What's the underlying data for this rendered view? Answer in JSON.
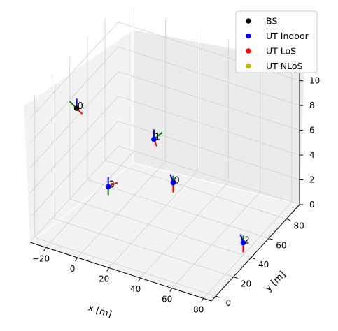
{
  "chart_data": {
    "type": "scatter",
    "projection": "3d",
    "xlabel": "x [m]",
    "ylabel": "y [m]",
    "zlabel": "",
    "xlim": [
      -30,
      85
    ],
    "ylim": [
      -5,
      95
    ],
    "zlim": [
      0,
      11.5
    ],
    "x_ticks": [
      "−20",
      "0",
      "20",
      "40",
      "60",
      "80"
    ],
    "y_ticks": [
      "0",
      "20",
      "40",
      "60",
      "80"
    ],
    "z_ticks": [
      "0",
      "2",
      "4",
      "6",
      "8",
      "10"
    ],
    "x_tick_values": [
      -20,
      0,
      20,
      40,
      60,
      80
    ],
    "y_tick_values": [
      0,
      20,
      40,
      60,
      80
    ],
    "z_tick_values": [
      0,
      2,
      4,
      6,
      8,
      10
    ],
    "grid": true,
    "legend": {
      "placement": "top-right",
      "entries": [
        {
          "label": "BS",
          "color": "#000000"
        },
        {
          "label": "UT Indoor",
          "color": "#0000ff"
        },
        {
          "label": "UT LoS",
          "color": "#ff0000"
        },
        {
          "label": "UT NLoS",
          "color": "#bfbf00"
        }
      ]
    },
    "series": [
      {
        "name": "BS",
        "color": "#000000",
        "points": [
          {
            "label": "0",
            "x": -20,
            "y": 30,
            "z": 8.5,
            "orientation": "down-right"
          }
        ]
      },
      {
        "name": "UT Indoor",
        "color": "#0000ff",
        "points": [
          {
            "label": "0",
            "x": 30,
            "y": 50,
            "z": 3.0,
            "orientation": "down"
          },
          {
            "label": "1",
            "x": 15,
            "y": 55,
            "z": 5.5,
            "orientation": "up-right"
          },
          {
            "label": "2",
            "x": 80,
            "y": 40,
            "z": 1.0,
            "orientation": "down"
          },
          {
            "label": "3",
            "x": 0,
            "y": 30,
            "z": 3.0,
            "orientation": "right"
          }
        ]
      },
      {
        "name": "UT LoS",
        "color": "#ff0000",
        "points": []
      },
      {
        "name": "UT NLoS",
        "color": "#bfbf00",
        "points": []
      }
    ],
    "orientation_axes_colors": {
      "a": "#ff0000",
      "b": "#008000",
      "c": "#0000ff"
    }
  }
}
